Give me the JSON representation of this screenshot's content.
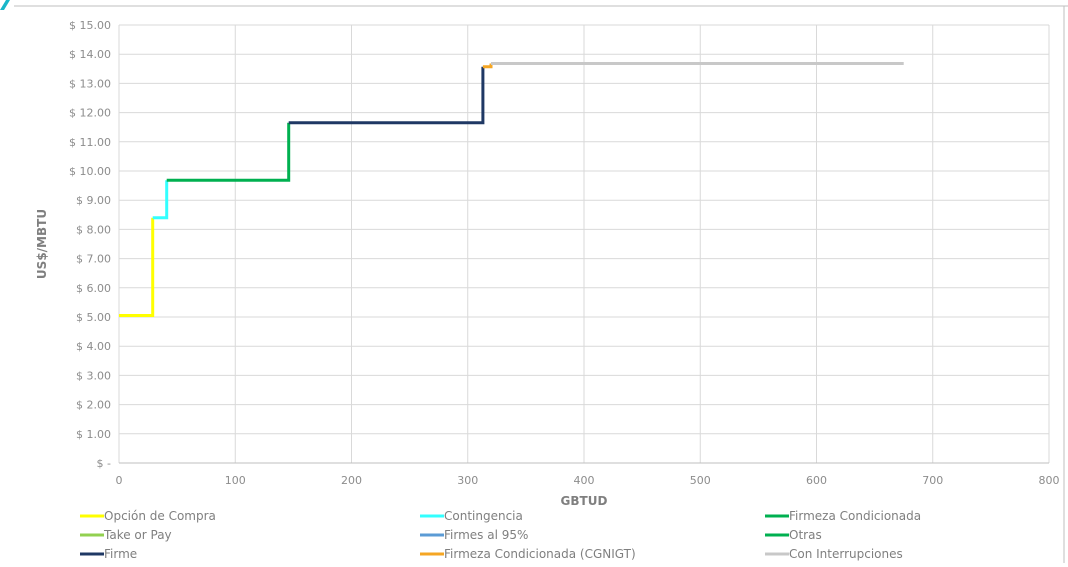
{
  "chart_data": {
    "type": "line",
    "title": "",
    "xlabel": "GBTUD",
    "ylabel": "US$/MBTU",
    "xlim": [
      0,
      800
    ],
    "ylim": [
      0,
      15
    ],
    "x_ticks": [
      0,
      100,
      200,
      300,
      400,
      500,
      600,
      700,
      800
    ],
    "x_tick_labels": [
      "0",
      "100",
      "200",
      "300",
      "400",
      "500",
      "600",
      "700",
      "800"
    ],
    "y_ticks": [
      0,
      1,
      2,
      3,
      4,
      5,
      6,
      7,
      8,
      9,
      10,
      11,
      12,
      13,
      14,
      15
    ],
    "y_tick_labels": [
      "$ -",
      "$ 1.00",
      "$ 2.00",
      "$ 3.00",
      "$ 4.00",
      "$ 5.00",
      "$ 6.00",
      "$ 7.00",
      "$ 8.00",
      "$ 9.00",
      "$ 10.00",
      "$ 11.00",
      "$ 12.00",
      "$ 13.00",
      "$ 14.00",
      "$ 15.00"
    ],
    "grid": true,
    "legend_position": "bottom",
    "series": [
      {
        "name": "Opción de Compra",
        "color": "#ffff00",
        "points": [
          [
            0,
            5.05
          ],
          [
            29,
            5.05
          ],
          [
            29,
            8.4
          ]
        ]
      },
      {
        "name": "Contingencia",
        "color": "#33ffff",
        "points": [
          [
            29,
            8.4
          ],
          [
            41,
            8.4
          ],
          [
            41,
            9.68
          ]
        ]
      },
      {
        "name": "Firmeza Condicionada",
        "color": "#00b050",
        "points": [
          [
            41,
            9.68
          ],
          [
            146,
            9.68
          ],
          [
            146,
            11.65
          ]
        ]
      },
      {
        "name": "Take or Pay",
        "color": "#92d050",
        "points": []
      },
      {
        "name": "Firmes al 95%",
        "color": "#5b9bd5",
        "points": []
      },
      {
        "name": "Otras",
        "color": "#00b050",
        "points": []
      },
      {
        "name": "Firme",
        "color": "#1f3864",
        "points": [
          [
            146,
            11.65
          ],
          [
            313,
            11.65
          ],
          [
            313,
            13.57
          ]
        ]
      },
      {
        "name": "Firmeza Condicionada (CGNIGT)",
        "color": "#f5a623",
        "points": [
          [
            313,
            13.57
          ],
          [
            320,
            13.57
          ],
          [
            320,
            13.68
          ]
        ]
      },
      {
        "name": "Con Interrupciones",
        "color": "#c8c8c8",
        "points": [
          [
            320,
            13.68
          ],
          [
            675,
            13.68
          ]
        ]
      }
    ]
  }
}
